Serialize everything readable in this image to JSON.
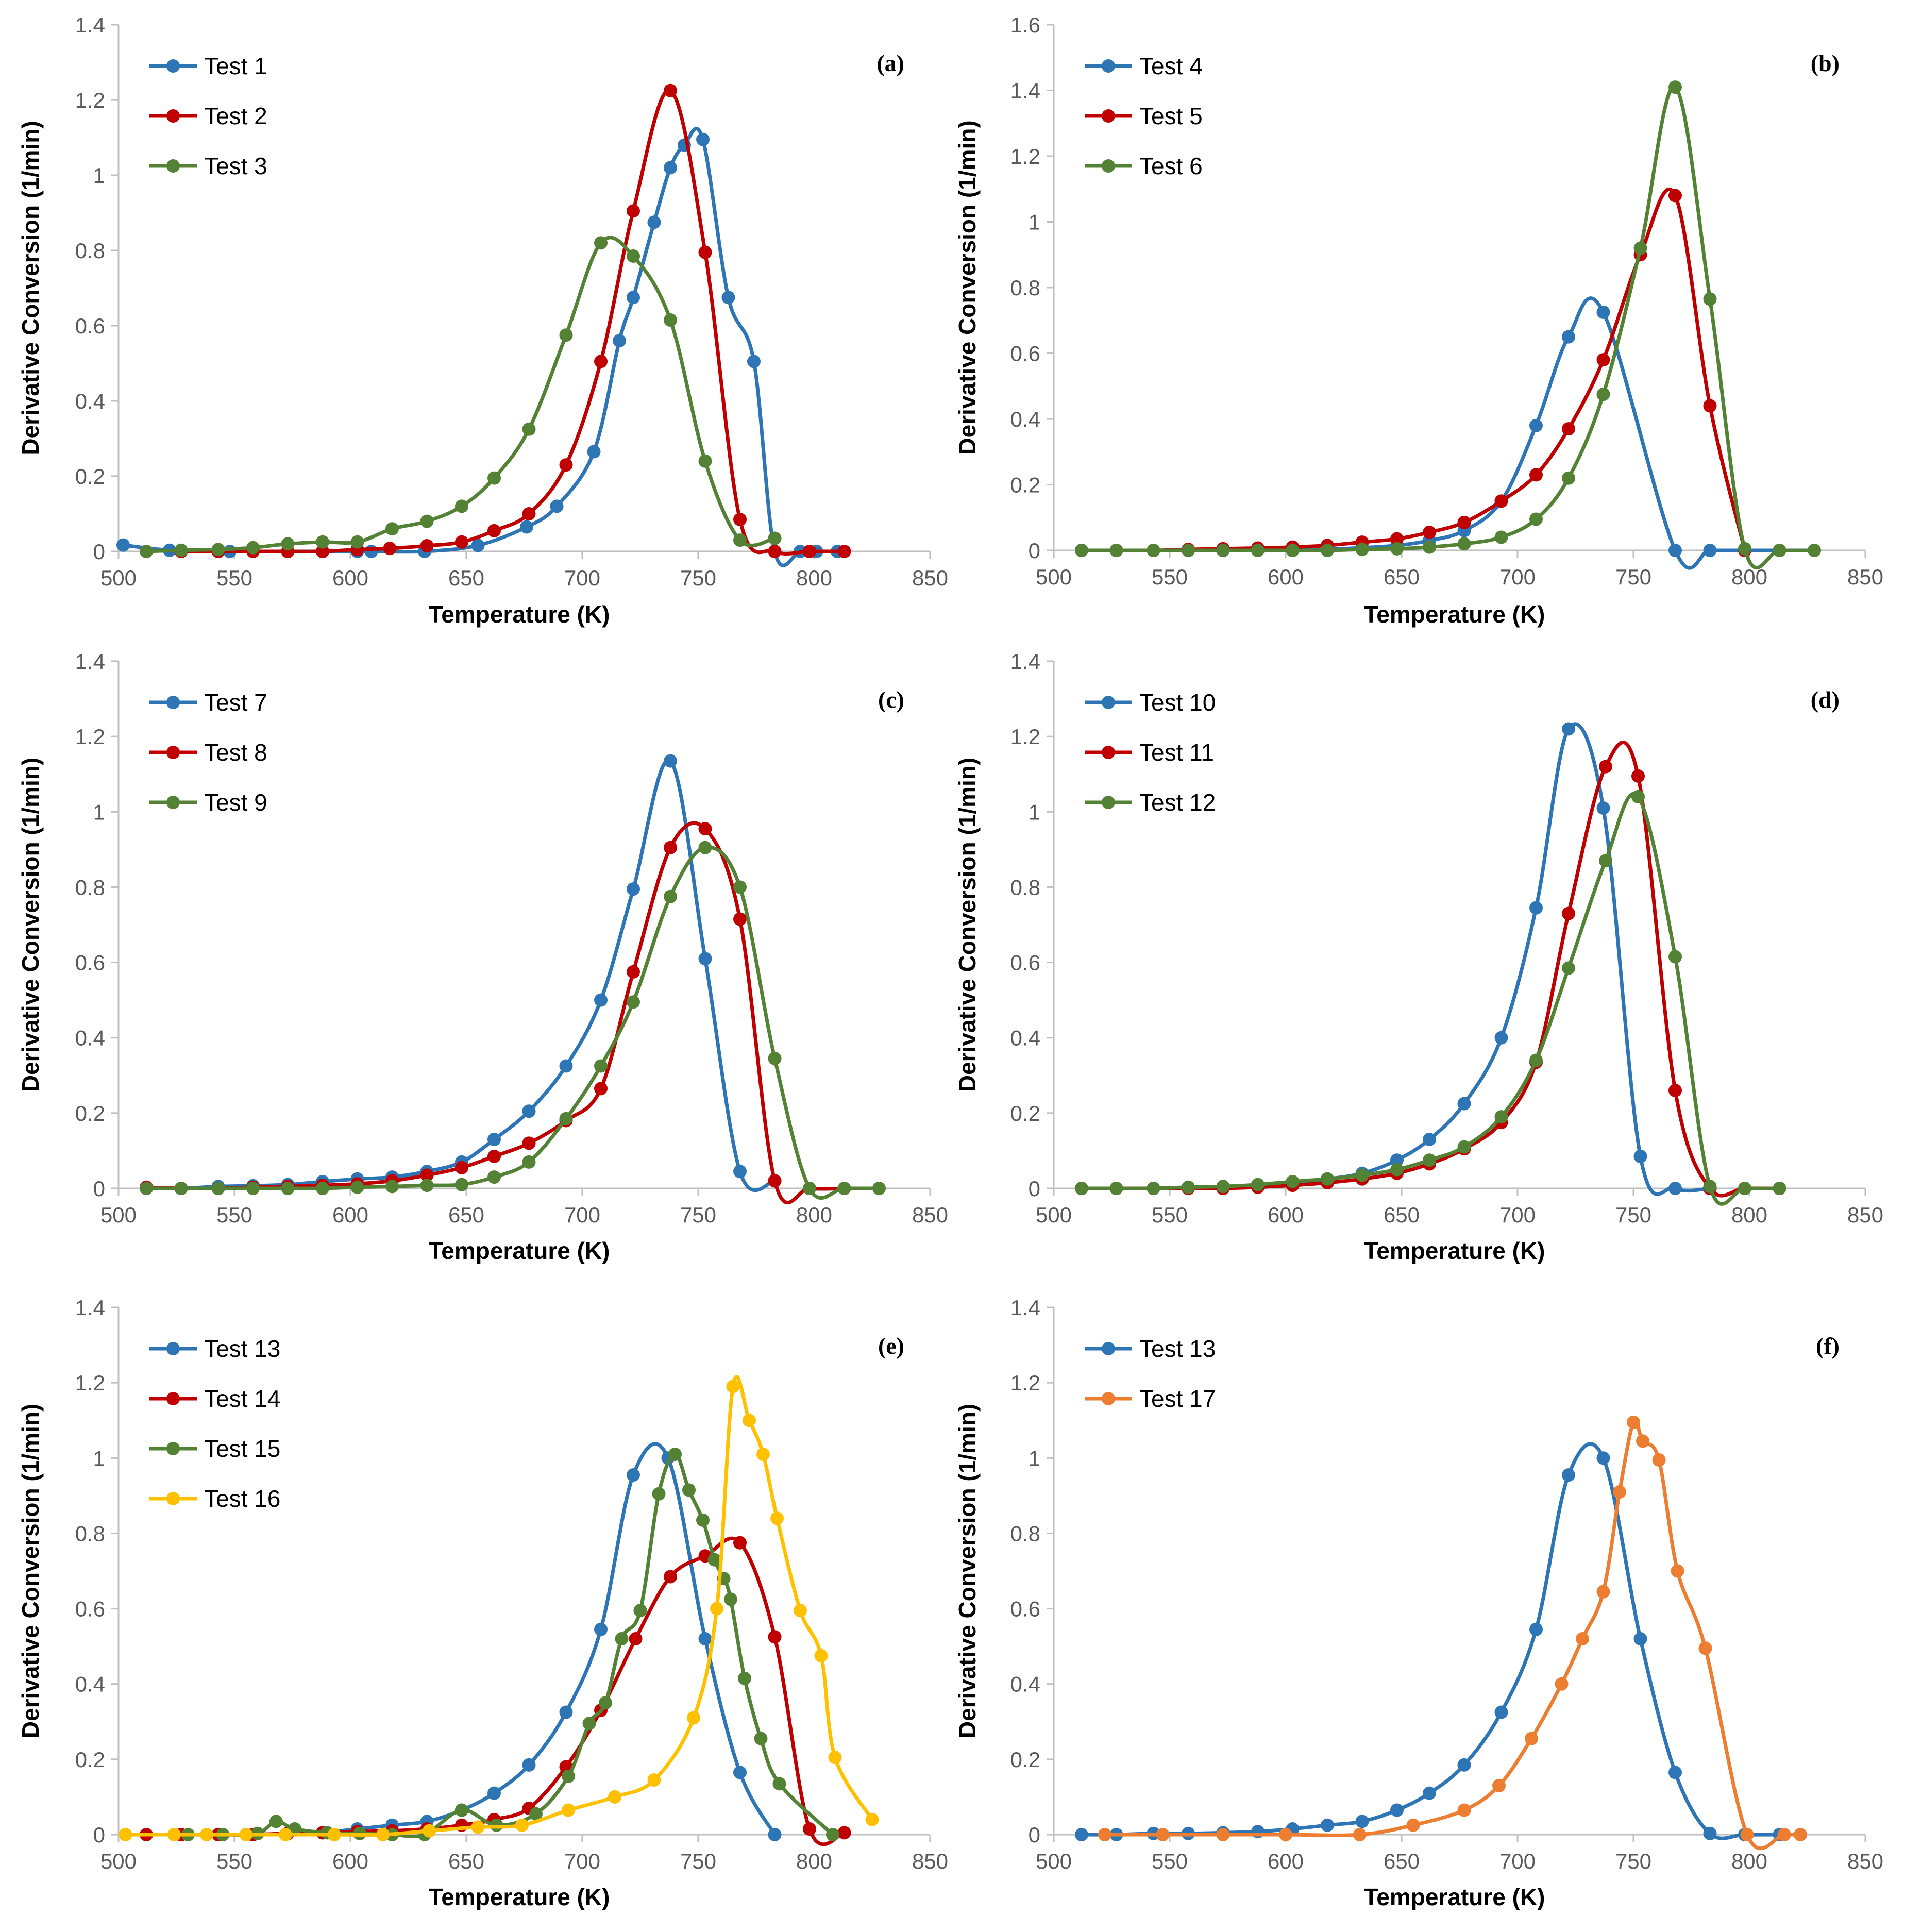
{
  "chart_data": [
    {
      "type": "line",
      "panel_label": "(a)",
      "xlabel": "Temperature (K)",
      "ylabel": "Derivative Conversion (1/min)",
      "xlim": [
        500,
        850
      ],
      "ylim": [
        0,
        1.4
      ],
      "xticks": [
        "500",
        "550",
        "600",
        "650",
        "700",
        "750",
        "800",
        "850"
      ],
      "yticks": [
        "0",
        "0.2",
        "0.4",
        "0.6",
        "0.8",
        "1",
        "1.2",
        "1.4"
      ],
      "legend_position": "top-left",
      "series": [
        {
          "name": "Test 1",
          "color": "#2E75B6",
          "x": [
            502,
            522,
            548,
            573,
            588,
            603,
            609,
            632,
            655,
            676,
            689,
            705,
            716,
            722,
            731,
            738,
            744,
            752,
            763,
            774,
            783,
            794,
            801,
            810
          ],
          "y": [
            0.017,
            0.003,
            0.0,
            0.0,
            0.0,
            0.0,
            0.0,
            0.0,
            0.016,
            0.065,
            0.12,
            0.265,
            0.56,
            0.675,
            0.875,
            1.02,
            1.08,
            1.095,
            0.675,
            0.505,
            0.0,
            0.0,
            0.0,
            0.0
          ]
        },
        {
          "name": "Test 2",
          "color": "#C00000",
          "x": [
            527,
            543,
            558,
            573,
            588,
            603,
            617,
            633,
            648,
            662,
            677,
            693,
            708,
            722,
            738,
            753,
            768,
            783,
            798,
            813
          ],
          "y": [
            0.0,
            0.0,
            0.0,
            0.0,
            0.0,
            0.005,
            0.008,
            0.015,
            0.025,
            0.055,
            0.1,
            0.23,
            0.505,
            0.905,
            1.225,
            0.795,
            0.085,
            0.0,
            0.0,
            0.0
          ]
        },
        {
          "name": "Test 3",
          "color": "#548235",
          "x": [
            512,
            527,
            543,
            558,
            573,
            588,
            603,
            618,
            633,
            648,
            662,
            677,
            693,
            708,
            722,
            738,
            753,
            768,
            783
          ],
          "y": [
            0.0,
            0.003,
            0.005,
            0.01,
            0.02,
            0.025,
            0.025,
            0.06,
            0.08,
            0.12,
            0.195,
            0.325,
            0.575,
            0.82,
            0.785,
            0.615,
            0.24,
            0.03,
            0.035
          ]
        }
      ]
    },
    {
      "type": "line",
      "panel_label": "(b)",
      "xlabel": "Temperature (K)",
      "ylabel": "Derivative Conversion (1/min)",
      "xlim": [
        500,
        850
      ],
      "ylim": [
        0,
        1.6
      ],
      "xticks": [
        "500",
        "550",
        "600",
        "650",
        "700",
        "750",
        "800",
        "850"
      ],
      "yticks": [
        "0",
        "0.2",
        "0.4",
        "0.6",
        "0.8",
        "1",
        "1.2",
        "1.4",
        "1.6"
      ],
      "legend_position": "top-left",
      "series": [
        {
          "name": "Test 4",
          "color": "#2E75B6",
          "x": [
            512,
            527,
            543,
            558,
            573,
            588,
            603,
            618,
            633,
            648,
            662,
            677,
            693,
            708,
            722,
            737,
            768,
            783,
            798,
            813,
            828
          ],
          "y": [
            0.0,
            0.0,
            0.0,
            0.0,
            0.0,
            0.0,
            0.0,
            0.003,
            0.008,
            0.015,
            0.03,
            0.06,
            0.15,
            0.38,
            0.65,
            0.725,
            0.0,
            0.0,
            0.0,
            0.0,
            0.0
          ]
        },
        {
          "name": "Test 5",
          "color": "#C00000",
          "x": [
            512,
            527,
            543,
            558,
            573,
            588,
            603,
            618,
            633,
            648,
            662,
            677,
            693,
            708,
            722,
            737,
            753,
            768,
            783,
            798
          ],
          "y": [
            0.0,
            0.0,
            0.0,
            0.003,
            0.005,
            0.007,
            0.01,
            0.015,
            0.025,
            0.035,
            0.055,
            0.085,
            0.15,
            0.23,
            0.37,
            0.58,
            0.9,
            1.08,
            0.44,
            0.0
          ]
        },
        {
          "name": "Test 6",
          "color": "#548235",
          "x": [
            512,
            527,
            543,
            558,
            573,
            588,
            603,
            618,
            633,
            648,
            662,
            677,
            693,
            708,
            722,
            737,
            753,
            768,
            783,
            798,
            813,
            828
          ],
          "y": [
            0.0,
            0.0,
            0.0,
            0.0,
            0.0,
            0.0,
            0.0,
            0.0,
            0.003,
            0.005,
            0.01,
            0.02,
            0.04,
            0.095,
            0.22,
            0.475,
            0.92,
            1.41,
            0.765,
            0.005,
            0.0,
            0.0
          ]
        }
      ]
    },
    {
      "type": "line",
      "panel_label": "(c)",
      "xlabel": "Temperature (K)",
      "ylabel": "Derivative Conversion (1/min)",
      "xlim": [
        500,
        850
      ],
      "ylim": [
        0,
        1.4
      ],
      "xticks": [
        "500",
        "550",
        "600",
        "650",
        "700",
        "750",
        "800",
        "850"
      ],
      "yticks": [
        "0",
        "0.2",
        "0.4",
        "0.6",
        "0.8",
        "1",
        "1.2",
        "1.4"
      ],
      "legend_position": "top-left",
      "series": [
        {
          "name": "Test 7",
          "color": "#2E75B6",
          "x": [
            512,
            527,
            543,
            558,
            573,
            588,
            603,
            618,
            633,
            648,
            662,
            677,
            693,
            708,
            722,
            738,
            753,
            768,
            783
          ],
          "y": [
            0.0,
            0.0,
            0.005,
            0.007,
            0.01,
            0.018,
            0.025,
            0.03,
            0.045,
            0.07,
            0.13,
            0.205,
            0.325,
            0.5,
            0.795,
            1.135,
            0.61,
            0.045,
            0.02
          ]
        },
        {
          "name": "Test 8",
          "color": "#C00000",
          "x": [
            512,
            527,
            543,
            558,
            573,
            588,
            603,
            618,
            633,
            648,
            662,
            677,
            693,
            708,
            722,
            738,
            753,
            768,
            783,
            798,
            813
          ],
          "y": [
            0.003,
            0.0,
            0.0,
            0.003,
            0.005,
            0.008,
            0.012,
            0.02,
            0.035,
            0.055,
            0.085,
            0.12,
            0.18,
            0.265,
            0.575,
            0.905,
            0.955,
            0.715,
            0.02,
            0.0,
            0.0
          ]
        },
        {
          "name": "Test 9",
          "color": "#548235",
          "x": [
            512,
            527,
            543,
            558,
            573,
            588,
            603,
            618,
            633,
            648,
            662,
            677,
            693,
            708,
            722,
            738,
            753,
            768,
            783,
            798,
            813,
            828
          ],
          "y": [
            0.0,
            0.0,
            0.0,
            0.0,
            0.0,
            0.0,
            0.003,
            0.005,
            0.008,
            0.01,
            0.03,
            0.07,
            0.185,
            0.325,
            0.495,
            0.775,
            0.905,
            0.8,
            0.345,
            0.0,
            0.0,
            0.0
          ]
        }
      ]
    },
    {
      "type": "line",
      "panel_label": "(d)",
      "xlabel": "Temperature (K)",
      "ylabel": "Derivative Conversion (1/min)",
      "xlim": [
        500,
        850
      ],
      "ylim": [
        0,
        1.4
      ],
      "xticks": [
        "500",
        "550",
        "600",
        "650",
        "700",
        "750",
        "800",
        "850"
      ],
      "yticks": [
        "0",
        "0.2",
        "0.4",
        "0.6",
        "0.8",
        "1",
        "1.2",
        "1.4"
      ],
      "legend_position": "top-left",
      "series": [
        {
          "name": "Test 10",
          "color": "#2E75B6",
          "x": [
            512,
            527,
            543,
            558,
            573,
            588,
            603,
            618,
            633,
            648,
            662,
            677,
            693,
            708,
            722,
            737,
            753,
            768,
            783
          ],
          "y": [
            0.0,
            0.0,
            0.0,
            0.003,
            0.005,
            0.008,
            0.015,
            0.025,
            0.04,
            0.075,
            0.13,
            0.225,
            0.4,
            0.745,
            1.22,
            1.01,
            0.085,
            0.0,
            0.0
          ]
        },
        {
          "name": "Test 11",
          "color": "#C00000",
          "x": [
            512,
            527,
            543,
            558,
            573,
            588,
            603,
            618,
            633,
            648,
            662,
            677,
            693,
            708,
            722,
            738,
            752,
            768,
            783,
            798,
            813
          ],
          "y": [
            0.0,
            0.0,
            0.0,
            0.0,
            0.0,
            0.003,
            0.008,
            0.015,
            0.025,
            0.04,
            0.065,
            0.105,
            0.175,
            0.335,
            0.73,
            1.12,
            1.095,
            0.26,
            0.0,
            0.0,
            0.0
          ]
        },
        {
          "name": "Test 12",
          "color": "#548235",
          "x": [
            512,
            527,
            543,
            558,
            573,
            588,
            603,
            618,
            633,
            648,
            662,
            677,
            693,
            708,
            722,
            738,
            752,
            768,
            783,
            798,
            813
          ],
          "y": [
            0.0,
            0.0,
            0.0,
            0.003,
            0.005,
            0.01,
            0.018,
            0.025,
            0.035,
            0.05,
            0.075,
            0.11,
            0.19,
            0.34,
            0.585,
            0.87,
            1.04,
            0.615,
            0.005,
            0.0,
            0.0
          ]
        }
      ]
    },
    {
      "type": "line",
      "panel_label": "(e)",
      "xlabel": "Temperature (K)",
      "ylabel": "Derivative Conversion (1/min)",
      "xlim": [
        500,
        850
      ],
      "ylim": [
        0,
        1.4
      ],
      "xticks": [
        "500",
        "550",
        "600",
        "650",
        "700",
        "750",
        "800",
        "850"
      ],
      "yticks": [
        "0",
        "0.2",
        "0.4",
        "0.6",
        "0.8",
        "1",
        "1.2",
        "1.4"
      ],
      "legend_position": "top-left",
      "series": [
        {
          "name": "Test 13",
          "color": "#2E75B6",
          "x": [
            527,
            543,
            558,
            573,
            588,
            603,
            618,
            633,
            648,
            662,
            677,
            693,
            708,
            722,
            737,
            753,
            768,
            783
          ],
          "y": [
            0.0,
            0.0,
            0.0,
            0.003,
            0.005,
            0.015,
            0.025,
            0.035,
            0.065,
            0.11,
            0.185,
            0.325,
            0.545,
            0.955,
            1.0,
            0.52,
            0.165,
            0.0
          ]
        },
        {
          "name": "Test 14",
          "color": "#C00000",
          "x": [
            512,
            527,
            543,
            558,
            573,
            588,
            603,
            618,
            633,
            648,
            662,
            677,
            693,
            708,
            723,
            738,
            753,
            768,
            783,
            798,
            813
          ],
          "y": [
            0.0,
            0.0,
            0.0,
            0.0,
            0.003,
            0.005,
            0.008,
            0.01,
            0.015,
            0.025,
            0.04,
            0.07,
            0.18,
            0.33,
            0.52,
            0.685,
            0.74,
            0.775,
            0.525,
            0.015,
            0.005
          ]
        },
        {
          "name": "Test 15",
          "color": "#548235",
          "x": [
            530,
            545,
            560,
            568,
            576,
            590,
            604,
            618,
            632,
            648,
            663,
            680,
            694,
            703,
            710,
            717,
            725,
            733,
            740,
            746,
            752,
            757,
            761,
            764,
            770,
            777,
            785,
            808
          ],
          "y": [
            0.0,
            0.0,
            0.003,
            0.035,
            0.015,
            0.005,
            0.003,
            0.0,
            0.0,
            0.065,
            0.025,
            0.055,
            0.155,
            0.295,
            0.35,
            0.52,
            0.595,
            0.905,
            1.01,
            0.915,
            0.835,
            0.73,
            0.68,
            0.625,
            0.415,
            0.255,
            0.135,
            0.0
          ]
        },
        {
          "name": "Test 16",
          "color": "#FFC000",
          "x": [
            503,
            524,
            538,
            555,
            572,
            593,
            614,
            634,
            655,
            674,
            694,
            714,
            731,
            748,
            758,
            765,
            772,
            778,
            784,
            794,
            803,
            809,
            825
          ],
          "y": [
            0.0,
            0.0,
            0.0,
            0.0,
            0.0,
            0.0,
            0.0,
            0.01,
            0.02,
            0.025,
            0.065,
            0.1,
            0.145,
            0.31,
            0.6,
            1.19,
            1.1,
            1.01,
            0.84,
            0.595,
            0.475,
            0.205,
            0.04
          ]
        }
      ]
    },
    {
      "type": "line",
      "panel_label": "(f)",
      "xlabel": "Temperature (K)",
      "ylabel": "Derivative Conversion (1/min)",
      "xlim": [
        500,
        850
      ],
      "ylim": [
        0,
        1.4
      ],
      "xticks": [
        "500",
        "550",
        "600",
        "650",
        "700",
        "750",
        "800",
        "850"
      ],
      "yticks": [
        "0",
        "0.2",
        "0.4",
        "0.6",
        "0.8",
        "1",
        "1.2",
        "1.4"
      ],
      "legend_position": "top-left",
      "series": [
        {
          "name": "Test 13",
          "color": "#2E75B6",
          "x": [
            512,
            527,
            543,
            558,
            573,
            588,
            603,
            618,
            633,
            648,
            662,
            677,
            693,
            708,
            722,
            737,
            753,
            768,
            783,
            798,
            813
          ],
          "y": [
            0.0,
            0.0,
            0.003,
            0.003,
            0.005,
            0.008,
            0.015,
            0.025,
            0.035,
            0.065,
            0.11,
            0.185,
            0.325,
            0.545,
            0.955,
            1.0,
            0.52,
            0.165,
            0.003,
            0.0,
            0.0
          ]
        },
        {
          "name": "Test 17",
          "color": "#ED7D31",
          "x": [
            522,
            547,
            573,
            600,
            632,
            655,
            677,
            692,
            706,
            719,
            728,
            737,
            744,
            750,
            754,
            761,
            769,
            781,
            799,
            815,
            822
          ],
          "y": [
            0.0,
            0.0,
            0.0,
            0.0,
            0.0,
            0.025,
            0.065,
            0.13,
            0.255,
            0.4,
            0.52,
            0.645,
            0.91,
            1.095,
            1.045,
            0.995,
            0.7,
            0.495,
            0.0,
            0.0,
            0.0
          ]
        }
      ]
    }
  ]
}
